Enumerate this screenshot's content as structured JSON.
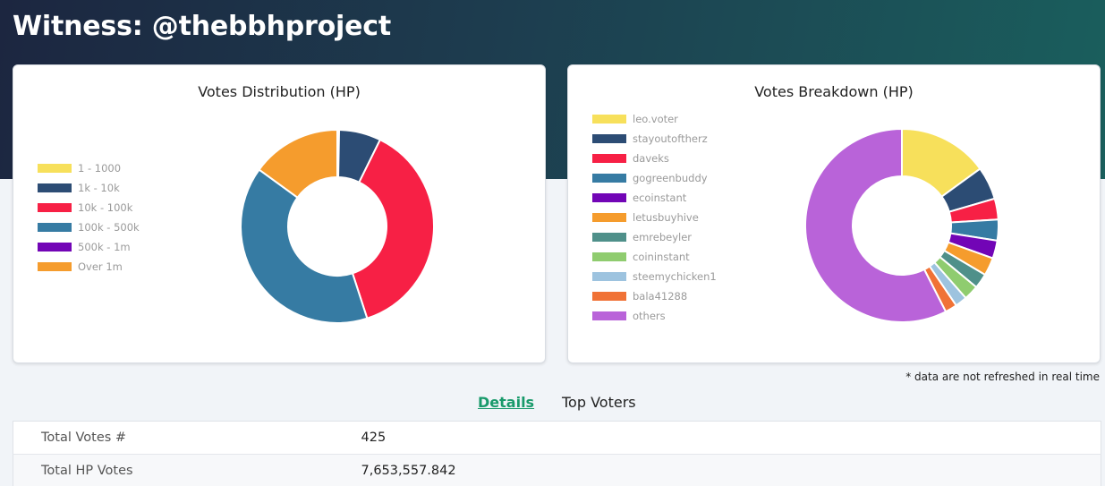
{
  "header": {
    "title": "Witness: @thebbhproject"
  },
  "distribution_chart": {
    "title": "Votes Distribution (HP)",
    "legend": [
      {
        "label": "1 - 1000",
        "color": "#f7e05b"
      },
      {
        "label": "1k - 10k",
        "color": "#2c4c74"
      },
      {
        "label": "10k - 100k",
        "color": "#f72045"
      },
      {
        "label": "100k - 500k",
        "color": "#367ba3"
      },
      {
        "label": "500k - 1m",
        "color": "#7205b6"
      },
      {
        "label": "Over 1m",
        "color": "#f59c2d"
      }
    ]
  },
  "breakdown_chart": {
    "title": "Votes Breakdown (HP)",
    "legend": [
      {
        "label": "leo.voter",
        "color": "#f7e05b"
      },
      {
        "label": "stayoutoftherz",
        "color": "#2c4c74"
      },
      {
        "label": "daveks",
        "color": "#f72045"
      },
      {
        "label": "gogreenbuddy",
        "color": "#367ba3"
      },
      {
        "label": "ecoinstant",
        "color": "#7205b6"
      },
      {
        "label": "letusbuyhive",
        "color": "#f59c2d"
      },
      {
        "label": "emrebeyler",
        "color": "#4f908a"
      },
      {
        "label": "coininstant",
        "color": "#8fcc6f"
      },
      {
        "label": "steemychicken1",
        "color": "#9dc3df"
      },
      {
        "label": "bala41288",
        "color": "#f07236"
      },
      {
        "label": "others",
        "color": "#b963d9"
      }
    ]
  },
  "chart_data": [
    {
      "type": "pie",
      "title": "Votes Distribution (HP)",
      "categories": [
        "1 - 1000",
        "1k - 10k",
        "10k - 100k",
        "100k - 500k",
        "500k - 1m",
        "Over 1m"
      ],
      "values": [
        0.3,
        7.0,
        37.7,
        40.0,
        0,
        15.0
      ],
      "colors": [
        "#f7e05b",
        "#2c4c74",
        "#f72045",
        "#367ba3",
        "#7205b6",
        "#f59c2d"
      ],
      "legend": "left"
    },
    {
      "type": "pie",
      "title": "Votes Breakdown (HP)",
      "categories": [
        "leo.voter",
        "stayoutoftherz",
        "daveks",
        "gogreenbuddy",
        "ecoinstant",
        "letusbuyhive",
        "emrebeyler",
        "coininstant",
        "steemychicken1",
        "bala41288",
        "others"
      ],
      "values": [
        15.0,
        5.5,
        3.5,
        3.5,
        3.0,
        3.0,
        2.5,
        2.5,
        2.0,
        2.0,
        57.5
      ],
      "colors": [
        "#f7e05b",
        "#2c4c74",
        "#f72045",
        "#367ba3",
        "#7205b6",
        "#f59c2d",
        "#4f908a",
        "#8fcc6f",
        "#9dc3df",
        "#f07236",
        "#b963d9"
      ],
      "legend": "left"
    }
  ],
  "note": "* data are not refreshed in real time",
  "tabs": {
    "details": "Details",
    "top_voters": "Top Voters"
  },
  "details": {
    "rows": [
      {
        "label": "Total Votes #",
        "value": "425"
      },
      {
        "label": "Total HP Votes",
        "value": "7,653,557.842"
      }
    ]
  }
}
